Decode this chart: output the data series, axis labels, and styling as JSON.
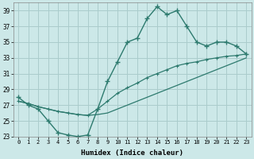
{
  "xlabel": "Humidex (Indice chaleur)",
  "background_color": "#cce8e8",
  "grid_color": "#aacccc",
  "line_color": "#2d7a6e",
  "hours": [
    0,
    1,
    2,
    3,
    4,
    5,
    6,
    7,
    8,
    9,
    10,
    11,
    12,
    13,
    14,
    15,
    16,
    17,
    18,
    19,
    20,
    21,
    22,
    23
  ],
  "y_max": [
    28.0,
    27.0,
    26.5,
    25.0,
    23.5,
    23.2,
    23.0,
    23.2,
    26.5,
    30.0,
    32.5,
    35.0,
    35.5,
    38.0,
    39.5,
    38.5,
    39.0,
    37.0,
    35.0,
    34.5,
    35.0,
    35.0,
    34.5,
    33.5
  ],
  "y_mean": [
    27.5,
    27.2,
    26.8,
    26.5,
    26.2,
    26.0,
    25.8,
    25.7,
    26.5,
    27.5,
    28.5,
    29.2,
    29.8,
    30.5,
    31.0,
    31.5,
    32.0,
    32.3,
    32.5,
    32.8,
    33.0,
    33.2,
    33.3,
    33.5
  ],
  "y_min": [
    27.5,
    27.2,
    26.8,
    26.5,
    26.2,
    26.0,
    25.8,
    25.7,
    25.8,
    26.0,
    26.5,
    27.0,
    27.5,
    28.0,
    28.5,
    29.0,
    29.5,
    30.0,
    30.5,
    31.0,
    31.5,
    32.0,
    32.5,
    33.0
  ],
  "ylim": [
    23,
    40
  ],
  "xlim": [
    -0.5,
    23.5
  ],
  "yticks": [
    23,
    25,
    27,
    29,
    31,
    33,
    35,
    37,
    39
  ],
  "xticks": [
    0,
    1,
    2,
    3,
    4,
    5,
    6,
    7,
    8,
    9,
    10,
    11,
    12,
    13,
    14,
    15,
    16,
    17,
    18,
    19,
    20,
    21,
    22,
    23
  ]
}
